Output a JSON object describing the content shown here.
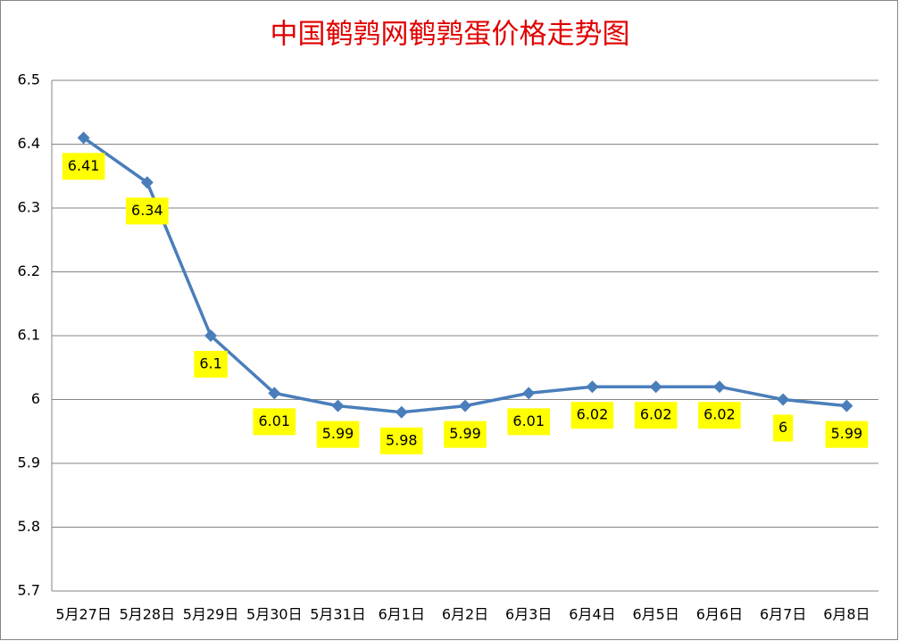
{
  "chart_data": {
    "type": "line",
    "title": "中国鹌鹑网鹌鹑蛋价格走势图",
    "categories": [
      "5月27日",
      "5月28日",
      "5月29日",
      "5月30日",
      "5月31日",
      "6月1日",
      "6月2日",
      "6月3日",
      "6月4日",
      "6月5日",
      "6月6日",
      "6月7日",
      "6月8日"
    ],
    "values": [
      6.41,
      6.34,
      6.1,
      6.01,
      5.99,
      5.98,
      5.99,
      6.01,
      6.02,
      6.02,
      6.02,
      6,
      5.99
    ],
    "color": "#4a7ebb",
    "label_color": "#ffff00",
    "ylim": [
      5.7,
      6.5
    ],
    "yticks": [
      5.7,
      5.8,
      5.9,
      6,
      6.1,
      6.2,
      6.3,
      6.4,
      6.5
    ],
    "grid": true
  }
}
